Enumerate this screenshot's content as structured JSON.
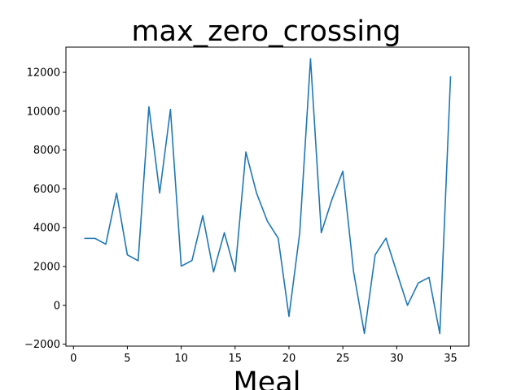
{
  "chart_data": {
    "type": "line",
    "title": "max_zero_crossing",
    "xlabel": "Meal",
    "ylabel": "",
    "xlim": [
      -0.7,
      36.7
    ],
    "ylim": [
      -2100,
      13300
    ],
    "x_ticks": [
      0,
      5,
      10,
      15,
      20,
      25,
      30,
      35
    ],
    "y_ticks": [
      -2000,
      0,
      2000,
      4000,
      6000,
      8000,
      10000,
      12000
    ],
    "grid": false,
    "color": "#1f77b4",
    "series": [
      {
        "x": [
          1,
          2,
          3,
          4,
          5,
          6,
          7,
          8,
          9,
          10,
          11,
          12,
          13,
          14,
          15,
          16,
          17,
          18,
          19,
          20,
          21,
          22,
          23,
          24,
          25,
          26,
          27,
          28,
          29,
          30,
          31,
          32,
          33,
          34,
          35
        ],
        "values": [
          3450,
          3450,
          3150,
          5780,
          2600,
          2300,
          10230,
          5780,
          10090,
          2020,
          2310,
          4620,
          1720,
          3740,
          1730,
          7900,
          5770,
          4330,
          3460,
          -570,
          3740,
          12700,
          3740,
          5470,
          6910,
          1720,
          -1450,
          2600,
          3460,
          1720,
          0,
          1150,
          1440,
          -1450,
          11800
        ]
      }
    ]
  }
}
